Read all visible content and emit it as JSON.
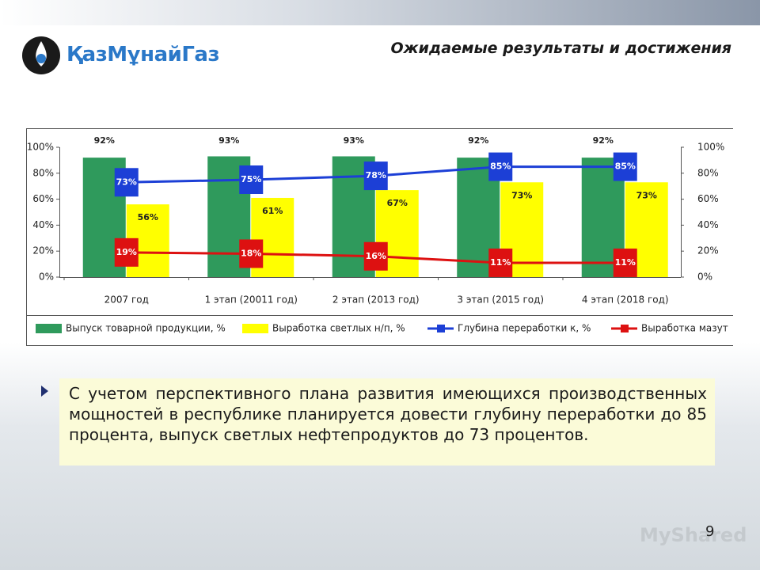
{
  "header": {
    "title": "Ожидаемые результаты и достижения",
    "logo": "ҚазМұнайГаз"
  },
  "chart_data": {
    "type": "bar",
    "categories": [
      "2007 год",
      "1 этап (20011 год)",
      "2 этап (2013 год)",
      "3 этап (2015 год)",
      "4 этап (2018 год)"
    ],
    "ylim": [
      0,
      100
    ],
    "yticks": [
      {
        "value": 0,
        "label": "0%"
      },
      {
        "value": 20,
        "label": "20%"
      },
      {
        "value": 40,
        "label": "40%"
      },
      {
        "value": 60,
        "label": "60%"
      },
      {
        "value": 80,
        "label": "80%"
      },
      {
        "value": 100,
        "label": "100%"
      }
    ],
    "y2lim": [
      0,
      100
    ],
    "y2ticks": [
      {
        "value": 0,
        "label": "0%"
      },
      {
        "value": 20,
        "label": "20%"
      },
      {
        "value": 40,
        "label": "40%"
      },
      {
        "value": 60,
        "label": "60%"
      },
      {
        "value": 80,
        "label": "80%"
      },
      {
        "value": 100,
        "label": "100%"
      }
    ],
    "legend": "bottom",
    "series": [
      {
        "name": "Выпуск товарной продукции, %",
        "type": "bar",
        "color": "#2f9a5c",
        "values": [
          92,
          93,
          93,
          92,
          92
        ],
        "value_labels": [
          "92%",
          "93%",
          "93%",
          "92%",
          "92%"
        ]
      },
      {
        "name": "Выработка светлых н/п, %",
        "type": "bar",
        "color": "#ffff00",
        "values": [
          56,
          61,
          67,
          73,
          73
        ],
        "value_labels": [
          "56%",
          "61%",
          "67%",
          "73%",
          "73%"
        ]
      },
      {
        "name": "Глубина переработки к, %",
        "type": "line",
        "color": "#1c3fd6",
        "values": [
          73,
          75,
          78,
          85,
          85
        ],
        "value_labels": [
          "73%",
          "75%",
          "78%",
          "85%",
          "85%"
        ]
      },
      {
        "name": "Выработка мазут",
        "type": "line",
        "color": "#dd1111",
        "values": [
          19,
          18,
          16,
          11,
          11
        ],
        "value_labels": [
          "19%",
          "18%",
          "16%",
          "11%",
          "11%"
        ]
      }
    ]
  },
  "bullet": "С учетом перспективного плана развития имеющихся производственных мощностей в республике планируется довести глубину переработки до 85 процента, выпуск светлых нефтепродуктов до 73 процентов.",
  "watermark": "MyShared",
  "page_number": "9"
}
